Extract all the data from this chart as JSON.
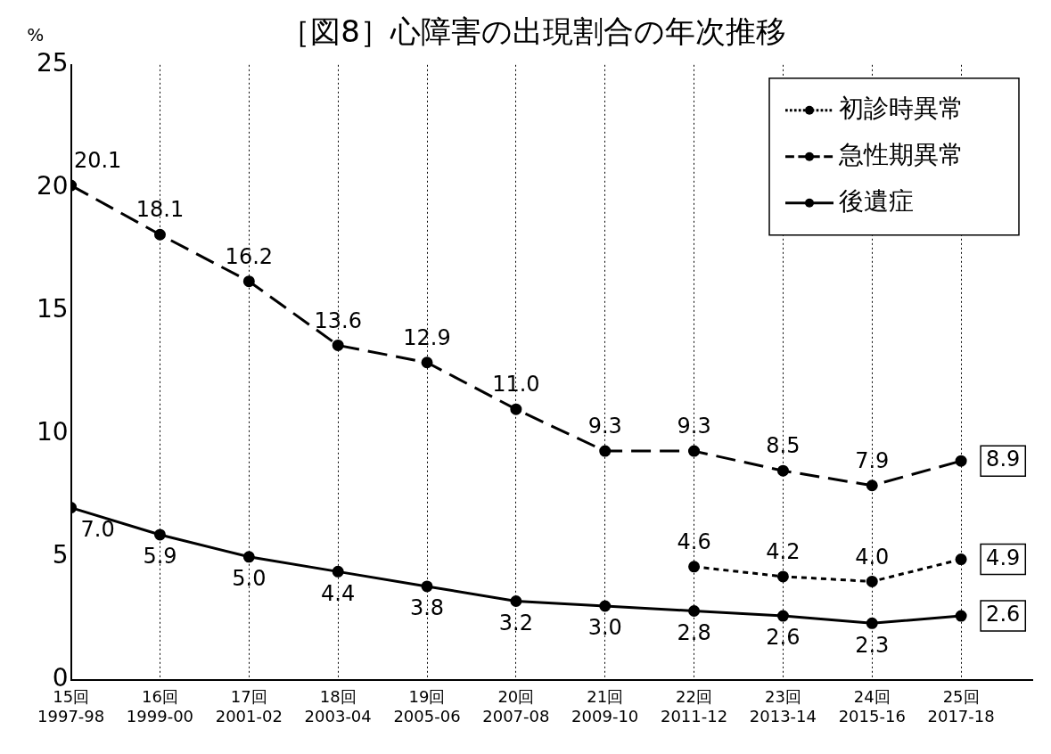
{
  "chart_data": {
    "type": "line",
    "title": "［図8］心障害の出現割合の年次推移",
    "ylabel": "%",
    "categories": [
      "15回\n1997-98",
      "16回\n1999-00",
      "17回\n2001-02",
      "18回\n2003-04",
      "19回\n2005-06",
      "20回\n2007-08",
      "21回\n2009-10",
      "22回\n2011-12",
      "23回\n2013-14",
      "24回\n2015-16",
      "25回\n2017-18"
    ],
    "series": [
      {
        "name": "初診時異常",
        "color": "#000000",
        "line_style": "dotted",
        "values": [
          null,
          null,
          null,
          null,
          null,
          null,
          null,
          4.6,
          4.2,
          4.0,
          4.9
        ],
        "value_labels": [
          null,
          null,
          null,
          null,
          null,
          null,
          null,
          "4.6",
          "4.2",
          "4.0",
          "4.9"
        ]
      },
      {
        "name": "急性期異常",
        "color": "#000000",
        "line_style": "dashed",
        "values": [
          20.1,
          18.1,
          16.2,
          13.6,
          12.9,
          11.0,
          9.3,
          9.3,
          8.5,
          7.9,
          8.9
        ],
        "value_labels": [
          "20.1",
          "18.1",
          "16.2",
          "13.6",
          "12.9",
          "11.0",
          "9.3",
          "9.3",
          "8.5",
          "7.9",
          "8.9"
        ]
      },
      {
        "name": "後遺症",
        "color": "#000000",
        "line_style": "solid",
        "values": [
          7.0,
          5.9,
          5.0,
          4.4,
          3.8,
          3.2,
          3.0,
          2.8,
          2.6,
          2.3,
          2.6
        ],
        "value_labels": [
          "7.0",
          "5.9",
          "5.0",
          "4.4",
          "3.8",
          "3.2",
          "3.0",
          "2.8",
          "2.6",
          "2.3",
          "2.6"
        ]
      }
    ],
    "ylim": [
      0,
      25
    ],
    "yticks": [
      0,
      5,
      10,
      15,
      20,
      25
    ],
    "grid": "x",
    "legend": "top right",
    "marker": "circle"
  }
}
